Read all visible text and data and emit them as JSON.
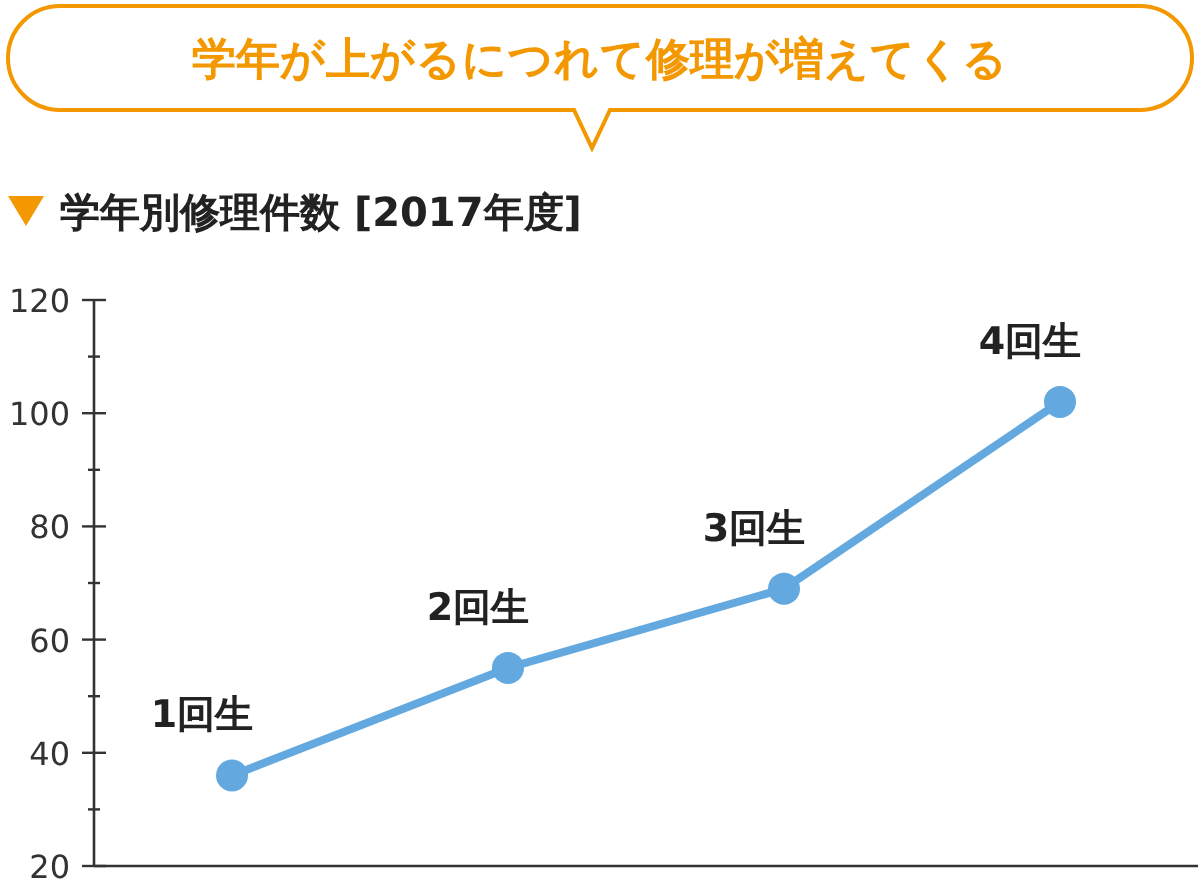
{
  "chart_data": {
    "type": "line",
    "title": "学年が上がるにつれて修理が増えてくる",
    "subtitle": "学年別修理件数 [2017年度]",
    "categories": [
      "1回生",
      "2回生",
      "3回生",
      "4回生"
    ],
    "series": [
      {
        "color": "#63a9df",
        "values": [
          36,
          55,
          69,
          102
        ]
      }
    ],
    "ylim": [
      20,
      120
    ],
    "yticks": [
      20,
      {
        "value": 30,
        "label": null
      },
      40,
      {
        "value": 50,
        "label": null
      },
      60,
      {
        "value": 70,
        "label": null
      },
      80,
      {
        "value": 90,
        "label": null
      },
      100,
      {
        "value": 110,
        "label": null
      },
      120
    ],
    "marker": "circle",
    "line_style": "solid",
    "grid": false
  }
}
